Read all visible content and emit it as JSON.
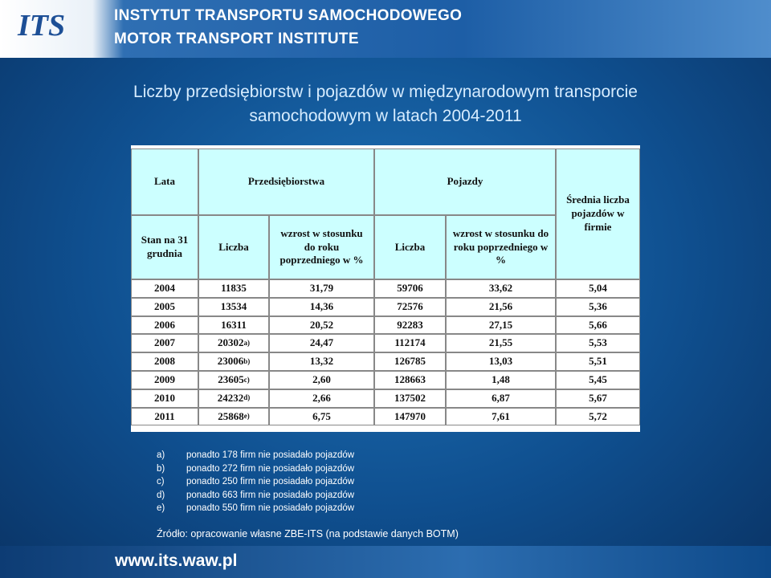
{
  "header": {
    "logo": "ITS",
    "title_pl": "INSTYTUT TRANSPORTU SAMOCHODOWEGO",
    "title_en": "MOTOR TRANSPORT INSTITUTE"
  },
  "title_line1": "Liczby przedsiębiorstw i pojazdów w międzynarodowym transporcie",
  "title_line2": "samochodowym w latach 2004-2011",
  "table": {
    "head": {
      "years": "Lata",
      "companies": "Przedsiębiorstwa",
      "vehicles": "Pojazdy",
      "average": "Średnia liczba pojazdów w firmie",
      "date": "Stan na 31 grudnia",
      "companies_count": "Liczba",
      "companies_growth": "wzrost w stosunku do roku poprzedniego w %",
      "vehicles_count": "Liczba",
      "vehicles_growth": "wzrost w stosunku do roku poprzedniego w %"
    },
    "rows": [
      [
        "2004",
        {
          "text": "11835"
        },
        "31,79",
        "59706",
        "33,62",
        "5,04"
      ],
      [
        "2005",
        {
          "text": "13534"
        },
        "14,36",
        "72576",
        "21,56",
        "5,36"
      ],
      [
        "2006",
        {
          "text": "16311"
        },
        "20,52",
        "92283",
        "27,15",
        "5,66"
      ],
      [
        "2007",
        {
          "text": "20302",
          "sup": "a)"
        },
        "24,47",
        "112174",
        "21,55",
        "5,53"
      ],
      [
        "2008",
        {
          "text": "23006",
          "sup": "b)"
        },
        "13,32",
        "126785",
        "13,03",
        "5,51"
      ],
      [
        "2009",
        {
          "text": "23605",
          "sup": "c)"
        },
        "2,60",
        "128663",
        "1,48",
        "5,45"
      ],
      [
        "2010",
        {
          "text": "24232",
          "sup": "d)"
        },
        "2,66",
        "137502",
        "6,87",
        "5,67"
      ],
      [
        "2011",
        {
          "text": "25868",
          "sup": "e)"
        },
        "6,75",
        "147970",
        "7,61",
        "5,72"
      ]
    ]
  },
  "notes": [
    {
      "label": "a)",
      "text": "ponadto 178 firm nie posiadało pojazdów"
    },
    {
      "label": "b)",
      "text": "ponadto 272 firm nie posiadało pojazdów"
    },
    {
      "label": "c)",
      "text": "ponadto 250 firm nie posiadało pojazdów"
    },
    {
      "label": "d)",
      "text": "ponadto 663 firm nie posiadało pojazdów"
    },
    {
      "label": "e)",
      "text": "ponadto 550 firm nie posiadało pojazdów"
    }
  ],
  "source": "Źródło: opracowanie własne ZBE-ITS (na podstawie danych BOTM)",
  "footer": "www.its.waw.pl"
}
